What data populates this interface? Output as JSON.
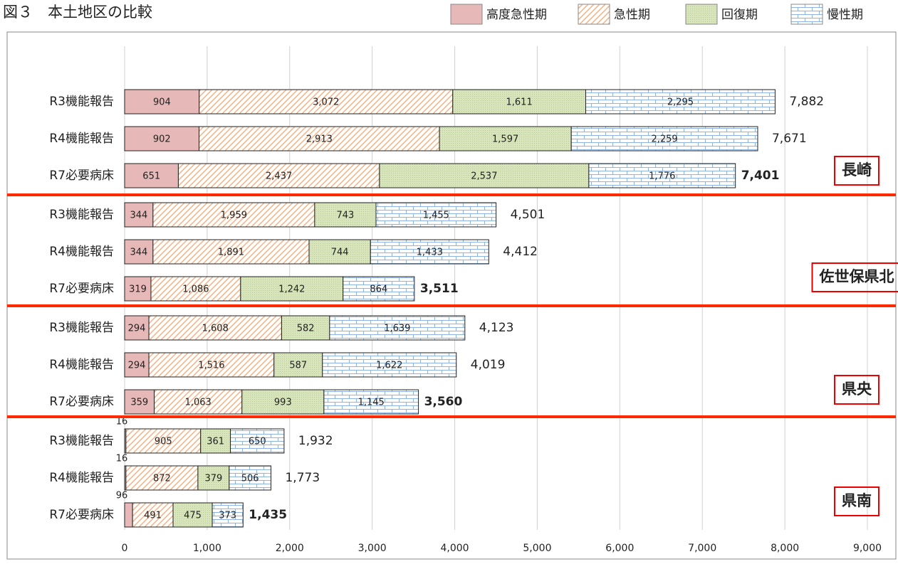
{
  "chart_data": {
    "type": "stacked-bar-horizontal",
    "title": "図３　本土地区の比較",
    "categories": [
      "R3機能報告",
      "R4機能報告",
      "R7必要病床",
      "R3機能報告",
      "R4機能報告",
      "R7必要病床",
      "R3機能報告",
      "R4機能報告",
      "R7必要病床",
      "R3機能報告",
      "R4機能報告",
      "R7必要病床"
    ],
    "groups": [
      "長崎",
      "佐世保県北",
      "県央",
      "県南"
    ],
    "series": [
      {
        "name": "高度急性期",
        "color": "#e6b8b7",
        "values": [
          904,
          902,
          651,
          344,
          344,
          319,
          294,
          294,
          359,
          16,
          16,
          96
        ],
        "value_labels": [
          "904",
          "902",
          "651",
          "344",
          "344",
          "319",
          "294",
          "294",
          "359",
          "16",
          "16",
          "96"
        ]
      },
      {
        "name": "急性期",
        "color": "#f4b183",
        "values": [
          3072,
          2913,
          2437,
          1959,
          1891,
          1086,
          1608,
          1516,
          1063,
          905,
          872,
          491
        ],
        "value_labels": [
          "3,072",
          "2,913",
          "2,437",
          "1,959",
          "1,891",
          "1,086",
          "1,608",
          "1,516",
          "1,063",
          "905",
          "872",
          "491"
        ]
      },
      {
        "name": "回復期",
        "color": "#d7e4bc",
        "values": [
          1611,
          1597,
          2537,
          743,
          744,
          1242,
          582,
          587,
          993,
          361,
          379,
          475
        ],
        "value_labels": [
          "1,611",
          "1,597",
          "2,537",
          "743",
          "744",
          "1,242",
          "582",
          "587",
          "993",
          "361",
          "379",
          "475"
        ]
      },
      {
        "name": "慢性期",
        "color": "#dce6f2",
        "values": [
          2295,
          2259,
          1776,
          1455,
          1433,
          864,
          1639,
          1622,
          1145,
          650,
          506,
          373
        ],
        "value_labels": [
          "2,295",
          "2,259",
          "1,776",
          "1,455",
          "1,433",
          "864",
          "1,639",
          "1,622",
          "1,145",
          "650",
          "506",
          "373"
        ]
      }
    ],
    "totals": [
      7882,
      7671,
      7401,
      4501,
      4412,
      3511,
      4123,
      4019,
      3560,
      1932,
      1773,
      1435
    ],
    "total_labels": [
      "7,882",
      "7,671",
      "7,401",
      "4,501",
      "4,412",
      "3,511",
      "4,123",
      "4,019",
      "3,560",
      "1,932",
      "1,773",
      "1,435"
    ],
    "xlim": [
      0,
      9000
    ],
    "xticks": [
      0,
      {
        "value": 1000,
        "label": "1,000"
      },
      {
        "value": 2000,
        "label": "2,000"
      },
      {
        "value": 3000,
        "label": "3,000"
      },
      {
        "value": 4000,
        "label": "4,000"
      },
      {
        "value": 5000,
        "label": "5,000"
      },
      {
        "value": 6000,
        "label": "6,000"
      },
      {
        "value": 7000,
        "label": "7,000"
      },
      {
        "value": 8000,
        "label": "8,000"
      },
      {
        "value": 9000,
        "label": "9,000"
      }
    ],
    "grid": true
  }
}
